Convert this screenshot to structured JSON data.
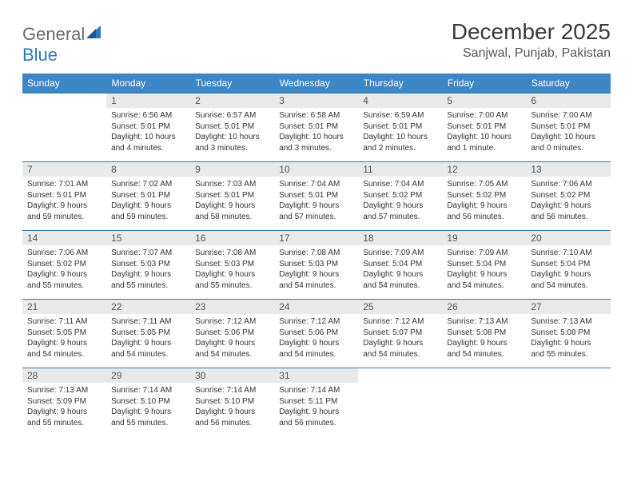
{
  "logo": {
    "text_general": "General",
    "text_blue": "Blue"
  },
  "title": "December 2025",
  "location": "Sanjwal, Punjab, Pakistan",
  "colors": {
    "header_bg": "#3d87c7",
    "header_text": "#ffffff",
    "daynum_bg": "#e9e9e9",
    "row_divider": "#2f78b8",
    "body_text": "#333333",
    "logo_gray": "#6a6a6a",
    "logo_blue": "#2f78b8"
  },
  "dayHeaders": [
    "Sunday",
    "Monday",
    "Tuesday",
    "Wednesday",
    "Thursday",
    "Friday",
    "Saturday"
  ],
  "weeks": [
    [
      null,
      {
        "n": "1",
        "sr": "Sunrise: 6:56 AM",
        "ss": "Sunset: 5:01 PM",
        "dl": "Daylight: 10 hours and 4 minutes."
      },
      {
        "n": "2",
        "sr": "Sunrise: 6:57 AM",
        "ss": "Sunset: 5:01 PM",
        "dl": "Daylight: 10 hours and 3 minutes."
      },
      {
        "n": "3",
        "sr": "Sunrise: 6:58 AM",
        "ss": "Sunset: 5:01 PM",
        "dl": "Daylight: 10 hours and 3 minutes."
      },
      {
        "n": "4",
        "sr": "Sunrise: 6:59 AM",
        "ss": "Sunset: 5:01 PM",
        "dl": "Daylight: 10 hours and 2 minutes."
      },
      {
        "n": "5",
        "sr": "Sunrise: 7:00 AM",
        "ss": "Sunset: 5:01 PM",
        "dl": "Daylight: 10 hours and 1 minute."
      },
      {
        "n": "6",
        "sr": "Sunrise: 7:00 AM",
        "ss": "Sunset: 5:01 PM",
        "dl": "Daylight: 10 hours and 0 minutes."
      }
    ],
    [
      {
        "n": "7",
        "sr": "Sunrise: 7:01 AM",
        "ss": "Sunset: 5:01 PM",
        "dl": "Daylight: 9 hours and 59 minutes."
      },
      {
        "n": "8",
        "sr": "Sunrise: 7:02 AM",
        "ss": "Sunset: 5:01 PM",
        "dl": "Daylight: 9 hours and 59 minutes."
      },
      {
        "n": "9",
        "sr": "Sunrise: 7:03 AM",
        "ss": "Sunset: 5:01 PM",
        "dl": "Daylight: 9 hours and 58 minutes."
      },
      {
        "n": "10",
        "sr": "Sunrise: 7:04 AM",
        "ss": "Sunset: 5:01 PM",
        "dl": "Daylight: 9 hours and 57 minutes."
      },
      {
        "n": "11",
        "sr": "Sunrise: 7:04 AM",
        "ss": "Sunset: 5:02 PM",
        "dl": "Daylight: 9 hours and 57 minutes."
      },
      {
        "n": "12",
        "sr": "Sunrise: 7:05 AM",
        "ss": "Sunset: 5:02 PM",
        "dl": "Daylight: 9 hours and 56 minutes."
      },
      {
        "n": "13",
        "sr": "Sunrise: 7:06 AM",
        "ss": "Sunset: 5:02 PM",
        "dl": "Daylight: 9 hours and 56 minutes."
      }
    ],
    [
      {
        "n": "14",
        "sr": "Sunrise: 7:06 AM",
        "ss": "Sunset: 5:02 PM",
        "dl": "Daylight: 9 hours and 55 minutes."
      },
      {
        "n": "15",
        "sr": "Sunrise: 7:07 AM",
        "ss": "Sunset: 5:03 PM",
        "dl": "Daylight: 9 hours and 55 minutes."
      },
      {
        "n": "16",
        "sr": "Sunrise: 7:08 AM",
        "ss": "Sunset: 5:03 PM",
        "dl": "Daylight: 9 hours and 55 minutes."
      },
      {
        "n": "17",
        "sr": "Sunrise: 7:08 AM",
        "ss": "Sunset: 5:03 PM",
        "dl": "Daylight: 9 hours and 54 minutes."
      },
      {
        "n": "18",
        "sr": "Sunrise: 7:09 AM",
        "ss": "Sunset: 5:04 PM",
        "dl": "Daylight: 9 hours and 54 minutes."
      },
      {
        "n": "19",
        "sr": "Sunrise: 7:09 AM",
        "ss": "Sunset: 5:04 PM",
        "dl": "Daylight: 9 hours and 54 minutes."
      },
      {
        "n": "20",
        "sr": "Sunrise: 7:10 AM",
        "ss": "Sunset: 5:04 PM",
        "dl": "Daylight: 9 hours and 54 minutes."
      }
    ],
    [
      {
        "n": "21",
        "sr": "Sunrise: 7:11 AM",
        "ss": "Sunset: 5:05 PM",
        "dl": "Daylight: 9 hours and 54 minutes."
      },
      {
        "n": "22",
        "sr": "Sunrise: 7:11 AM",
        "ss": "Sunset: 5:05 PM",
        "dl": "Daylight: 9 hours and 54 minutes."
      },
      {
        "n": "23",
        "sr": "Sunrise: 7:12 AM",
        "ss": "Sunset: 5:06 PM",
        "dl": "Daylight: 9 hours and 54 minutes."
      },
      {
        "n": "24",
        "sr": "Sunrise: 7:12 AM",
        "ss": "Sunset: 5:06 PM",
        "dl": "Daylight: 9 hours and 54 minutes."
      },
      {
        "n": "25",
        "sr": "Sunrise: 7:12 AM",
        "ss": "Sunset: 5:07 PM",
        "dl": "Daylight: 9 hours and 54 minutes."
      },
      {
        "n": "26",
        "sr": "Sunrise: 7:13 AM",
        "ss": "Sunset: 5:08 PM",
        "dl": "Daylight: 9 hours and 54 minutes."
      },
      {
        "n": "27",
        "sr": "Sunrise: 7:13 AM",
        "ss": "Sunset: 5:08 PM",
        "dl": "Daylight: 9 hours and 55 minutes."
      }
    ],
    [
      {
        "n": "28",
        "sr": "Sunrise: 7:13 AM",
        "ss": "Sunset: 5:09 PM",
        "dl": "Daylight: 9 hours and 55 minutes."
      },
      {
        "n": "29",
        "sr": "Sunrise: 7:14 AM",
        "ss": "Sunset: 5:10 PM",
        "dl": "Daylight: 9 hours and 55 minutes."
      },
      {
        "n": "30",
        "sr": "Sunrise: 7:14 AM",
        "ss": "Sunset: 5:10 PM",
        "dl": "Daylight: 9 hours and 56 minutes."
      },
      {
        "n": "31",
        "sr": "Sunrise: 7:14 AM",
        "ss": "Sunset: 5:11 PM",
        "dl": "Daylight: 9 hours and 56 minutes."
      },
      null,
      null,
      null
    ]
  ]
}
